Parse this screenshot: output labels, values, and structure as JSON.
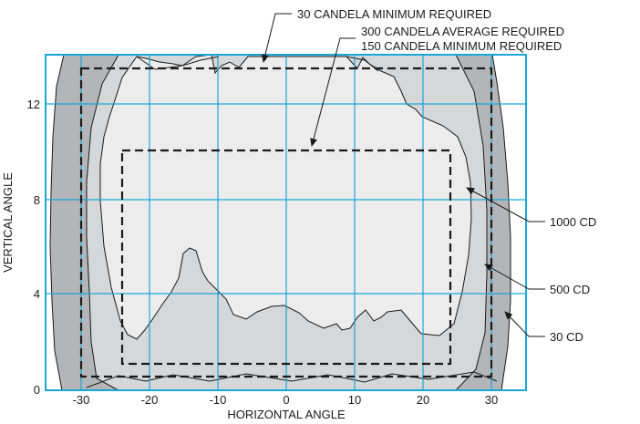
{
  "diagram": {
    "x_axis": {
      "label": "HORIZONTAL ANGLE",
      "ticks": [
        "-30",
        "-20",
        "-10",
        "0",
        "10",
        "20",
        "30"
      ]
    },
    "y_axis": {
      "label": "VERTICAL ANGLE",
      "ticks": [
        "0",
        "4",
        "8",
        "12"
      ]
    },
    "annotations": {
      "min30": "30 CANDELA MINIMUM REQUIRED",
      "avg300": "300 CANDELA AVERAGE REQUIRED",
      "min150": "150 CANDELA MINIMUM REQUIRED"
    },
    "contours": {
      "cd1000": "1000 CD",
      "cd500": "500 CD",
      "cd30": "30 CD"
    },
    "colors": {
      "grid": "#1aa7d8",
      "outer_band": "#b3b5b8",
      "mid_band": "#d6d7d9",
      "inner_region": "#ececed",
      "outline": "#1a1a1a"
    }
  }
}
